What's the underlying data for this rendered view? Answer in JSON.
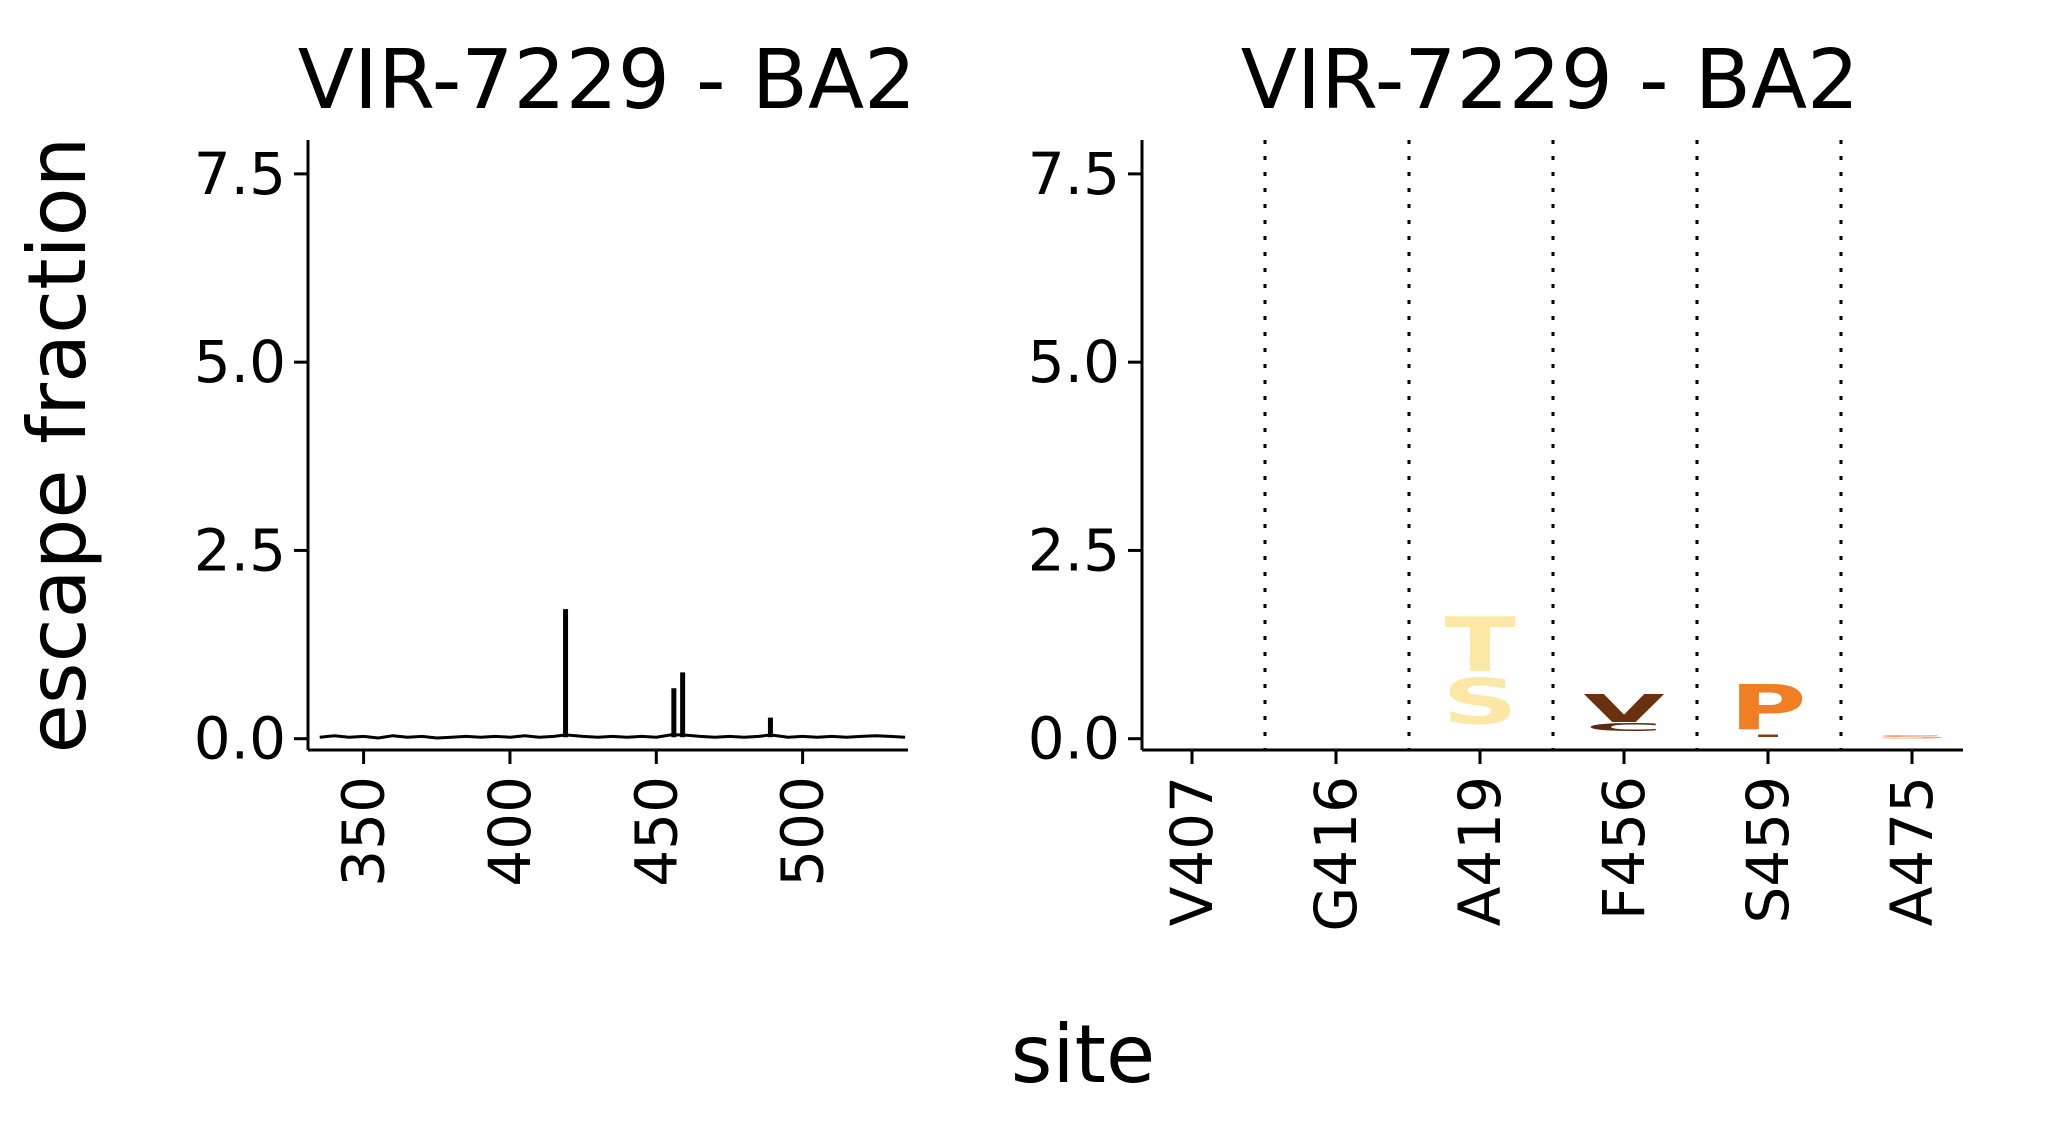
{
  "figure": {
    "ylabel": "escape fraction",
    "xlabel": "site"
  },
  "chart_data": [
    {
      "type": "line",
      "title": "VIR-7229 - BA2",
      "xlabel": "",
      "ylabel": "",
      "xlim": [
        331,
        536
      ],
      "ylim": [
        -0.15,
        7.95
      ],
      "xticks": [
        350,
        400,
        450,
        500
      ],
      "yticks": [
        0.0,
        2.5,
        5.0,
        7.5
      ],
      "ytick_labels": [
        "0.0",
        "2.5",
        "5.0",
        "7.5"
      ],
      "line_color": "#000000",
      "baseline": 0.02,
      "series": [
        {
          "x": [
            335,
            340,
            345,
            350,
            355,
            360,
            365,
            370,
            375,
            380,
            385,
            390,
            395,
            400,
            405,
            410,
            415,
            419,
            425,
            430,
            435,
            440,
            445,
            450,
            455,
            456,
            459,
            465,
            470,
            475,
            480,
            485,
            489,
            495,
            500,
            505,
            510,
            515,
            520,
            525,
            530,
            535
          ],
          "y": [
            0.02,
            0.04,
            0.02,
            0.03,
            0.01,
            0.04,
            0.02,
            0.03,
            0.01,
            0.02,
            0.03,
            0.02,
            0.03,
            0.02,
            0.04,
            0.02,
            0.03,
            1.72,
            0.03,
            0.02,
            0.03,
            0.02,
            0.03,
            0.02,
            0.05,
            0.67,
            0.88,
            0.03,
            0.02,
            0.03,
            0.02,
            0.03,
            0.28,
            0.02,
            0.03,
            0.02,
            0.03,
            0.02,
            0.03,
            0.04,
            0.03,
            0.02
          ]
        }
      ]
    },
    {
      "type": "logo",
      "title": "VIR-7229 - BA2",
      "xlabel": "",
      "ylabel": "",
      "ylim": [
        -0.15,
        7.95
      ],
      "yticks": [
        0.0,
        2.5,
        5.0,
        7.5
      ],
      "ytick_labels": [
        "0.0",
        "2.5",
        "5.0",
        "7.5"
      ],
      "categories": [
        "V407",
        "G416",
        "A419",
        "F456",
        "S459",
        "A475"
      ],
      "letters": [
        {
          "site": "A419",
          "letter": "S",
          "y0": 0.2,
          "y1": 0.78,
          "color": "#fde7a6"
        },
        {
          "site": "A419",
          "letter": "T",
          "y0": 0.9,
          "y1": 1.6,
          "color": "#fde7a6"
        },
        {
          "site": "F456",
          "letter": "C",
          "y0": 0.1,
          "y1": 0.2,
          "color": "#5a2a12"
        },
        {
          "site": "F456",
          "letter": "V",
          "y0": 0.22,
          "y1": 0.58,
          "color": "#6b3010"
        },
        {
          "site": "S459",
          "letter": "P",
          "y0": 0.12,
          "y1": 0.7,
          "color": "#ef7f22"
        },
        {
          "site": "S459",
          "letter": "I",
          "y0": 0.02,
          "y1": 0.05,
          "color": "#8b3a10"
        },
        {
          "site": "A475",
          "letter": "S",
          "y0": 0.0,
          "y1": 0.04,
          "color": "#f0a080"
        }
      ]
    }
  ]
}
